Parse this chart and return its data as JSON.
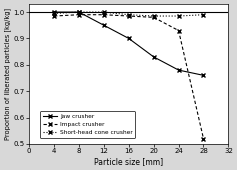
{
  "title": "",
  "xlabel": "Particle size [mm]",
  "ylabel": "Proportion of liberated particles [kg/kg]",
  "xlim": [
    0,
    32
  ],
  "ylim": [
    0.5,
    1.03
  ],
  "yticks": [
    0.5,
    0.6,
    0.7,
    0.8,
    0.9,
    1.0
  ],
  "xticks": [
    0,
    4,
    8,
    12,
    16,
    20,
    24,
    28,
    32
  ],
  "jaw_crusher": {
    "x": [
      4,
      8,
      12,
      16,
      20,
      24,
      28
    ],
    "y": [
      1.0,
      1.0,
      0.95,
      0.9,
      0.83,
      0.78,
      0.76
    ],
    "label": "Jaw crusher",
    "color": "#000000",
    "linestyle": "-",
    "marker": "x",
    "markersize": 3
  },
  "impact_crusher": {
    "x": [
      4,
      8,
      12,
      16,
      20,
      24,
      28
    ],
    "y": [
      0.985,
      0.99,
      0.99,
      0.985,
      0.98,
      0.93,
      0.52
    ],
    "label": "Impact crusher",
    "color": "#000000",
    "linestyle": "--",
    "marker": "x",
    "markersize": 3
  },
  "short_head_cone_crusher": {
    "x": [
      4,
      8,
      12,
      16,
      20,
      24,
      28
    ],
    "y": [
      0.995,
      1.0,
      1.0,
      0.99,
      0.985,
      0.985,
      0.99
    ],
    "label": "Short-head cone crusher",
    "color": "#000000",
    "linestyle": ":",
    "marker": "x",
    "markersize": 3
  },
  "background_color": "#d8d8d8",
  "plot_bg_color": "#ffffff"
}
